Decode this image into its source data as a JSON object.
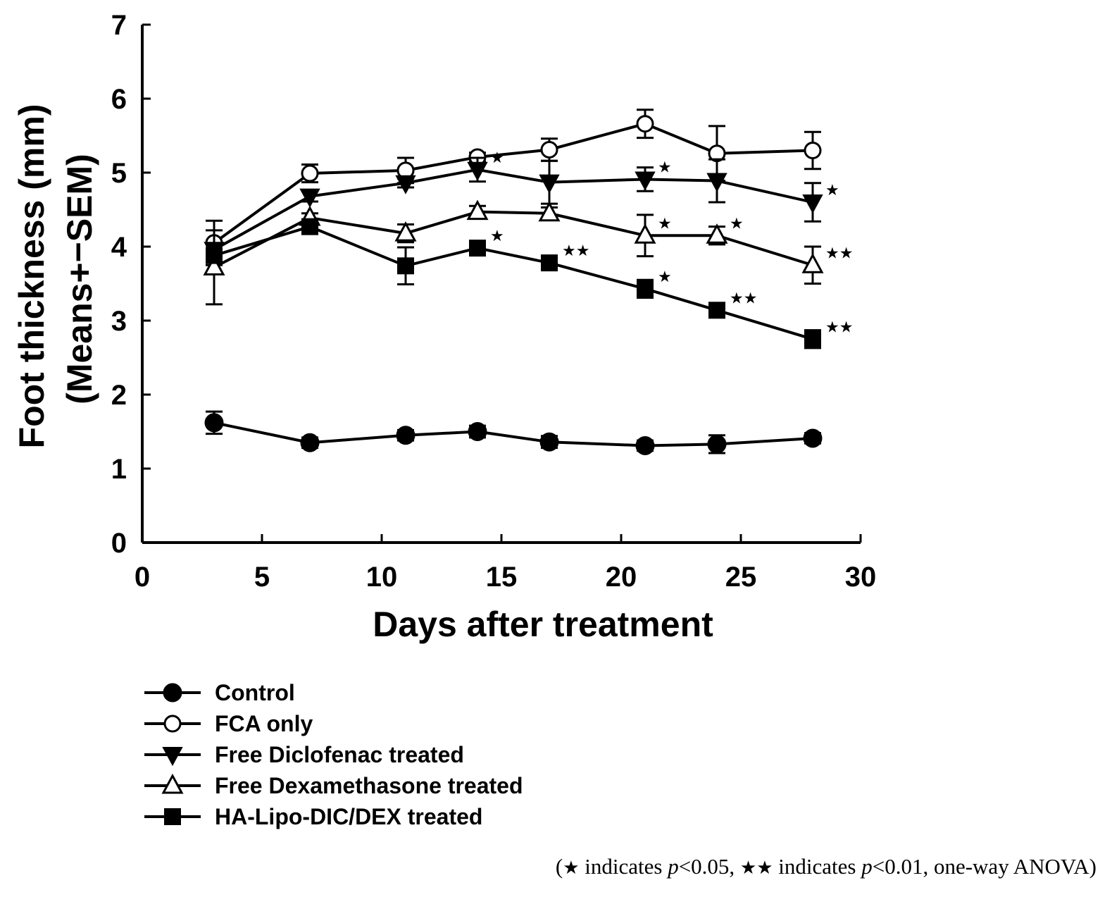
{
  "chart_data": {
    "type": "line",
    "xlabel": "Days after treatment",
    "ylabel_line1": "Foot thickness (mm)",
    "ylabel_line2_prefix": "(Means+",
    "ylabel_line2_pm": "−",
    "ylabel_line2_suffix": "SEM)",
    "xlim": [
      0,
      30
    ],
    "ylim": [
      0,
      7
    ],
    "x_ticks": [
      0,
      5,
      10,
      15,
      20,
      25,
      30
    ],
    "y_ticks": [
      0,
      1,
      2,
      3,
      4,
      5,
      6,
      7
    ],
    "x": [
      3,
      7,
      11,
      14,
      17,
      21,
      24,
      28
    ],
    "series": [
      {
        "name": "Control",
        "marker": "circle-filled",
        "values": [
          1.62,
          1.35,
          1.45,
          1.5,
          1.36,
          1.31,
          1.33,
          1.41
        ],
        "errors": [
          0.15,
          0.07,
          0.07,
          0.08,
          0.08,
          0.07,
          0.12,
          0.07
        ]
      },
      {
        "name": "FCA only",
        "marker": "circle-open",
        "values": [
          4.05,
          4.99,
          5.03,
          5.21,
          5.31,
          5.66,
          5.26,
          5.3
        ],
        "errors": [
          0.3,
          0.12,
          0.17,
          0.06,
          0.15,
          0.19,
          0.37,
          0.25
        ]
      },
      {
        "name": "Free Diclofenac treated",
        "marker": "triangle-down-filled",
        "values": [
          3.96,
          4.68,
          4.86,
          5.04,
          4.87,
          4.91,
          4.89,
          4.6
        ],
        "errors": [
          0.06,
          0.07,
          0.06,
          0.16,
          0.29,
          0.16,
          0.29,
          0.26
        ]
      },
      {
        "name": "Free Dexamethasone treated",
        "marker": "triangle-up-open",
        "values": [
          3.72,
          4.39,
          4.18,
          4.47,
          4.45,
          4.15,
          4.15,
          3.75
        ],
        "errors": [
          0.5,
          0.06,
          0.12,
          0.08,
          0.08,
          0.28,
          0.12,
          0.25
        ]
      },
      {
        "name": "HA-Lipo-DIC/DEX treated",
        "marker": "square-filled",
        "values": [
          3.88,
          4.27,
          3.74,
          3.98,
          3.78,
          3.43,
          3.14,
          2.75
        ],
        "errors": [
          0.08,
          0.06,
          0.25,
          0.06,
          0.08,
          0.12,
          0.06,
          0.12
        ]
      }
    ],
    "annotations": [
      {
        "x": 14,
        "series": "Free Diclofenac treated",
        "text": "★"
      },
      {
        "x": 21,
        "series": "Free Diclofenac treated",
        "text": "★"
      },
      {
        "x": 28,
        "series": "Free Diclofenac treated",
        "text": "★"
      },
      {
        "x": 21,
        "series": "Free Dexamethasone treated",
        "text": "★"
      },
      {
        "x": 24,
        "series": "Free Dexamethasone treated",
        "text": "★"
      },
      {
        "x": 28,
        "series": "Free Dexamethasone treated",
        "text": "★★"
      },
      {
        "x": 14,
        "series": "HA-Lipo-DIC/DEX treated",
        "text": "★"
      },
      {
        "x": 17,
        "series": "HA-Lipo-DIC/DEX treated",
        "text": "★★"
      },
      {
        "x": 21,
        "series": "HA-Lipo-DIC/DEX treated",
        "text": "★"
      },
      {
        "x": 24,
        "series": "HA-Lipo-DIC/DEX treated",
        "text": "★★"
      },
      {
        "x": 28,
        "series": "HA-Lipo-DIC/DEX treated",
        "text": "★★"
      }
    ],
    "legend_position": "bottom-left"
  },
  "footnote": {
    "open_paren": "(",
    "star1": "★",
    "text1": " indicates ",
    "p1": "p",
    "text2": "<0.05, ",
    "star2": "★★",
    "text3": " indicates ",
    "p2": "p",
    "text4": "<0.01, one-way ANOVA)"
  }
}
